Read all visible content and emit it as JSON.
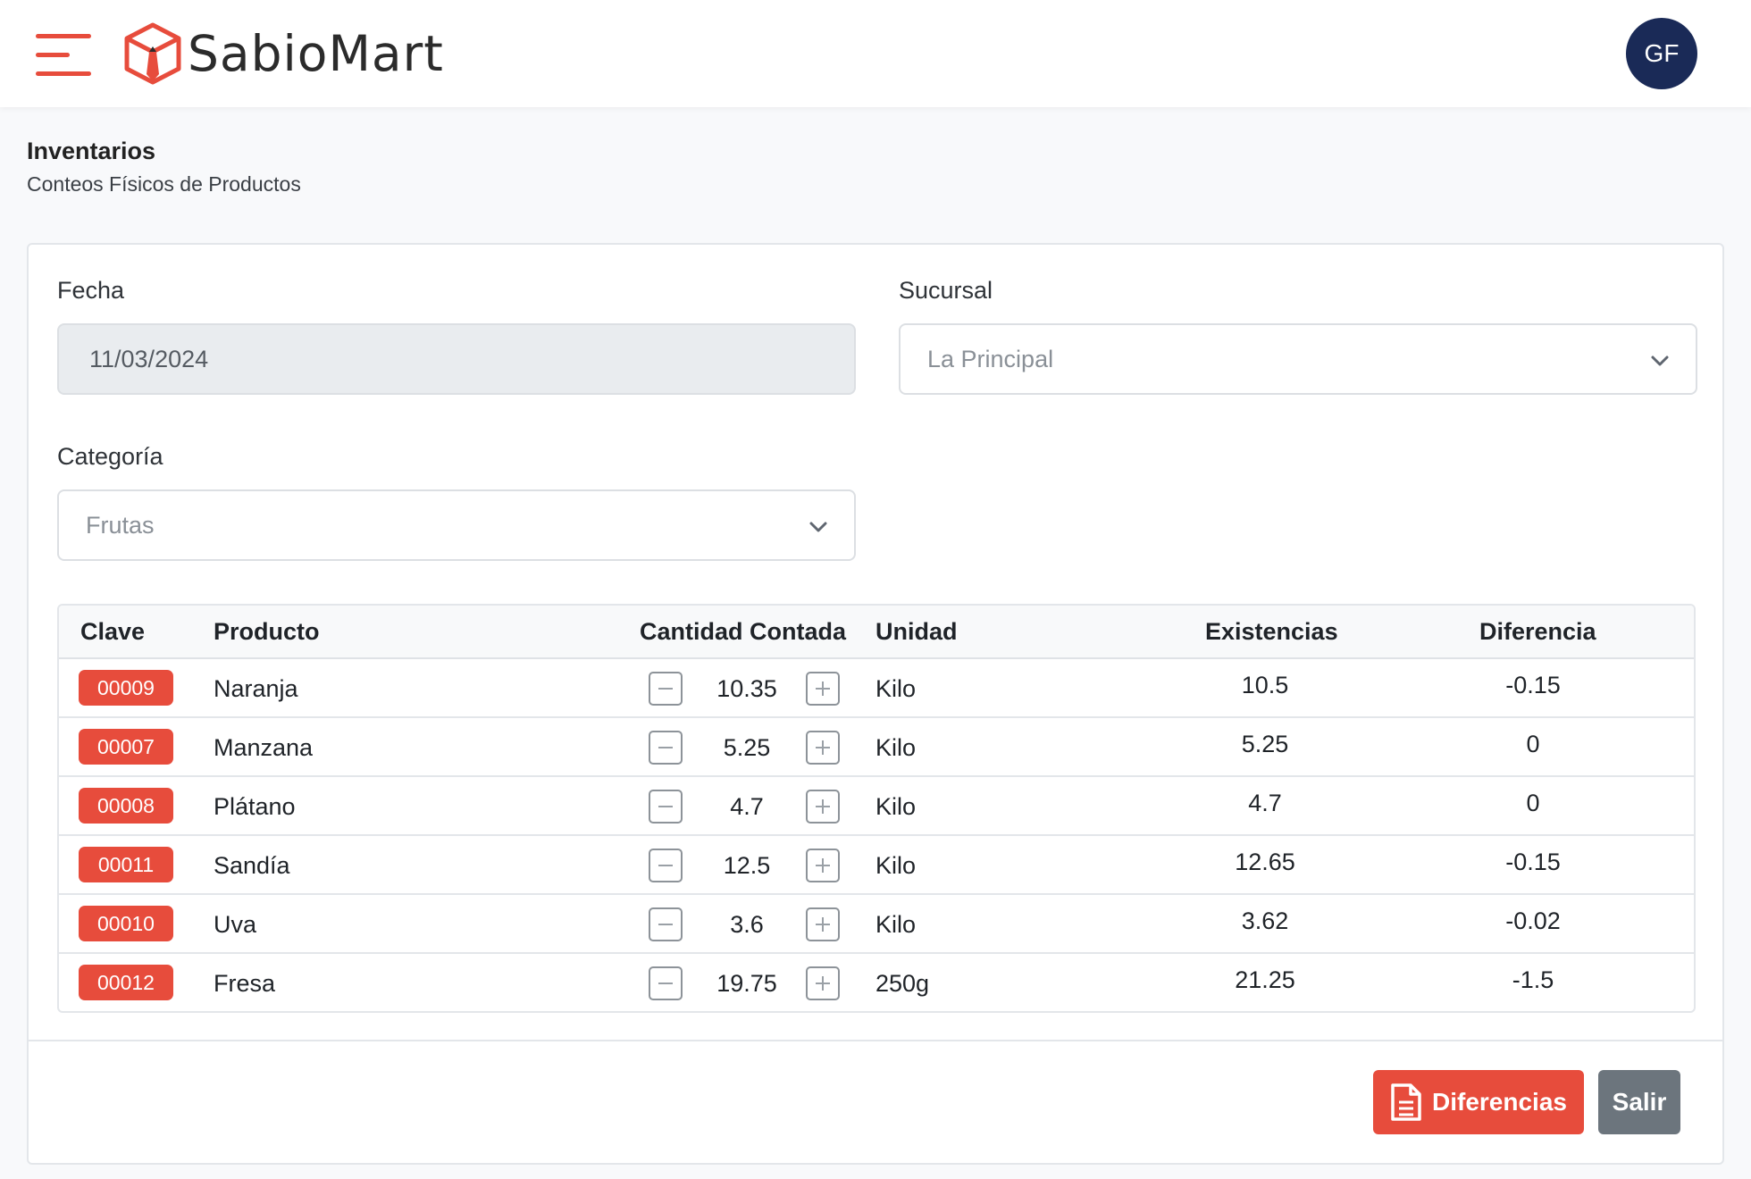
{
  "brand": {
    "name": "SabioMart",
    "accent_color": "#e74c3c"
  },
  "user": {
    "initials": "GF",
    "avatar_color": "#1a2a57"
  },
  "page": {
    "title": "Inventarios",
    "subtitle": "Conteos Físicos de Productos"
  },
  "form": {
    "fecha_label": "Fecha",
    "fecha_value": "11/03/2024",
    "sucursal_label": "Sucursal",
    "sucursal_value": "La Principal",
    "categoria_label": "Categoría",
    "categoria_value": "Frutas"
  },
  "table": {
    "columns": [
      "Clave",
      "Producto",
      "Cantidad Contada",
      "Unidad",
      "Existencias",
      "Diferencia"
    ],
    "rows": [
      {
        "clave": "00009",
        "producto": "Naranja",
        "cantidad": "10.35",
        "unidad": "Kilo",
        "existencias": "10.5",
        "diferencia": "-0.15"
      },
      {
        "clave": "00007",
        "producto": "Manzana",
        "cantidad": "5.25",
        "unidad": "Kilo",
        "existencias": "5.25",
        "diferencia": "0"
      },
      {
        "clave": "00008",
        "producto": "Plátano",
        "cantidad": "4.7",
        "unidad": "Kilo",
        "existencias": "4.7",
        "diferencia": "0"
      },
      {
        "clave": "00011",
        "producto": "Sandía",
        "cantidad": "12.5",
        "unidad": "Kilo",
        "existencias": "12.65",
        "diferencia": "-0.15"
      },
      {
        "clave": "00010",
        "producto": "Uva",
        "cantidad": "3.6",
        "unidad": "Kilo",
        "existencias": "3.62",
        "diferencia": "-0.02"
      },
      {
        "clave": "00012",
        "producto": "Fresa",
        "cantidad": "19.75",
        "unidad": "250g",
        "existencias": "21.25",
        "diferencia": "-1.5"
      }
    ]
  },
  "actions": {
    "diferencias_label": "Diferencias",
    "salir_label": "Salir"
  },
  "icons": {
    "menu": "hamburger-menu-icon",
    "logo": "cube-logo-icon",
    "chevron": "chevron-down-icon",
    "minus": "minus-icon",
    "plus": "plus-icon",
    "document": "document-icon"
  }
}
